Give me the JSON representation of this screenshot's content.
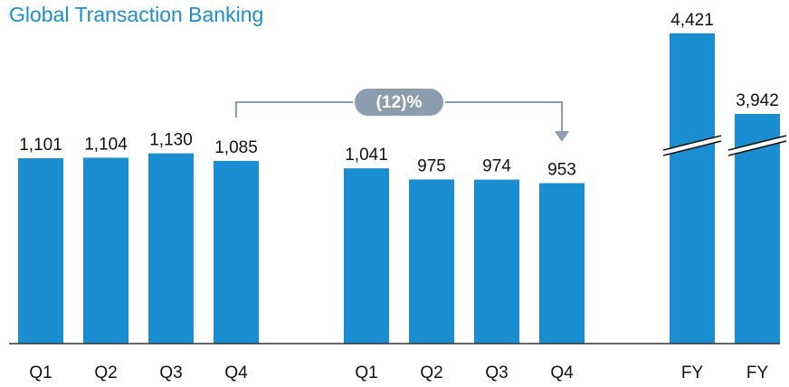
{
  "chart_data": {
    "type": "bar",
    "title": "Global Transaction Banking",
    "categories": [
      "Q1",
      "Q2",
      "Q3",
      "Q4",
      "Q1",
      "Q2",
      "Q3",
      "Q4",
      "FY",
      "FY"
    ],
    "values": [
      1101,
      1104,
      1130,
      1085,
      1041,
      975,
      974,
      953,
      4421,
      3942
    ],
    "value_labels": [
      "1,101",
      "1,104",
      "1,130",
      "1,085",
      "1,041",
      "975",
      "974",
      "953",
      "4,421",
      "3,942"
    ],
    "color": "#1a8ed1",
    "annotation": "(12)%"
  }
}
